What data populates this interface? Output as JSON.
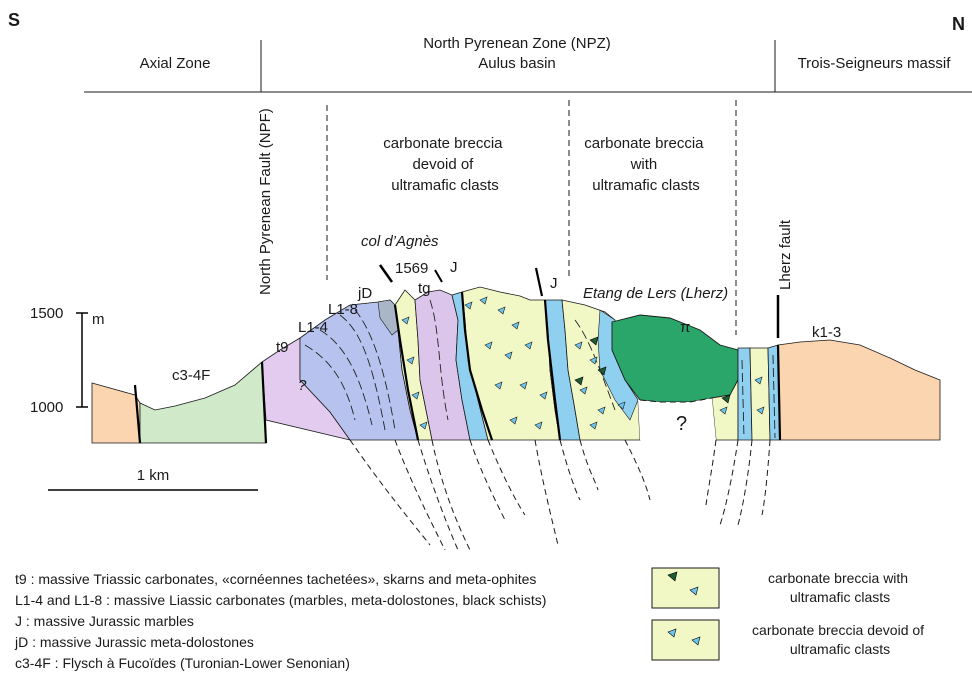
{
  "orientation": {
    "south": "S",
    "north": "N"
  },
  "header": {
    "npz_title": "North Pyrenean Zone (NPZ)",
    "axial_zone": "Axial Zone",
    "aulus_basin": "Aulus basin",
    "trois_seigneurs": "Trois-Seigneurs massif"
  },
  "breccia_headers": {
    "devoid": [
      "carbonate breccia",
      "devoid of",
      "ultramafic clasts"
    ],
    "with": [
      "carbonate breccia",
      "with",
      "ultramafic clasts"
    ]
  },
  "faults": {
    "npf": "North Pyrenean Fault (NPF)",
    "lherz": "Lherz fault"
  },
  "units": {
    "c3_4f": "c3-4F",
    "t9": "t9",
    "l1_4": "L1-4",
    "l1_8": "L1-8",
    "jd": "jD",
    "tg": "tg",
    "j_left": "J",
    "j_right": "J",
    "k1_3": "k1-3",
    "pi": "π",
    "q_left": "?",
    "q_right": "?"
  },
  "places": {
    "col_dagnes": "col d’Agnès",
    "elevation_peak": "1569",
    "etang": "Etang de Lers (Lherz)"
  },
  "scale": {
    "y_1500": "1500",
    "y_1000": "1000",
    "unit_m": "m",
    "km": "1 km"
  },
  "legend_text": [
    "t9 : massive Triassic carbonates, «cornéennes tachetées», skarns and meta-ophites",
    "L1-4 and L1-8 : massive Liassic carbonates (marbles, meta-dolostones, black schists)",
    "J : massive Jurassic marbles",
    "jD : massive Jurassic meta-dolostones",
    "c3-4F : Flysch à Fucoïdes (Turonian-Lower Senonian)"
  ],
  "legend_boxes": {
    "with": [
      "carbonate breccia with",
      "ultramafic clasts"
    ],
    "devoid": [
      "carbonate breccia devoid of",
      "ultramafic clasts"
    ]
  },
  "colors": {
    "axial_orange": "#fbd4b0",
    "flysch_green": "#cfe9c9",
    "triassic_purple": "#e2cbef",
    "liassic_blue": "#b7c3ee",
    "jurassic_cyan": "#8fcff0",
    "breccia_yellow": "#f1f8c6",
    "lherzolite_green": "#2aa66a",
    "tg_purple": "#dcc5ea",
    "trois_orange": "#fbd4b0"
  }
}
